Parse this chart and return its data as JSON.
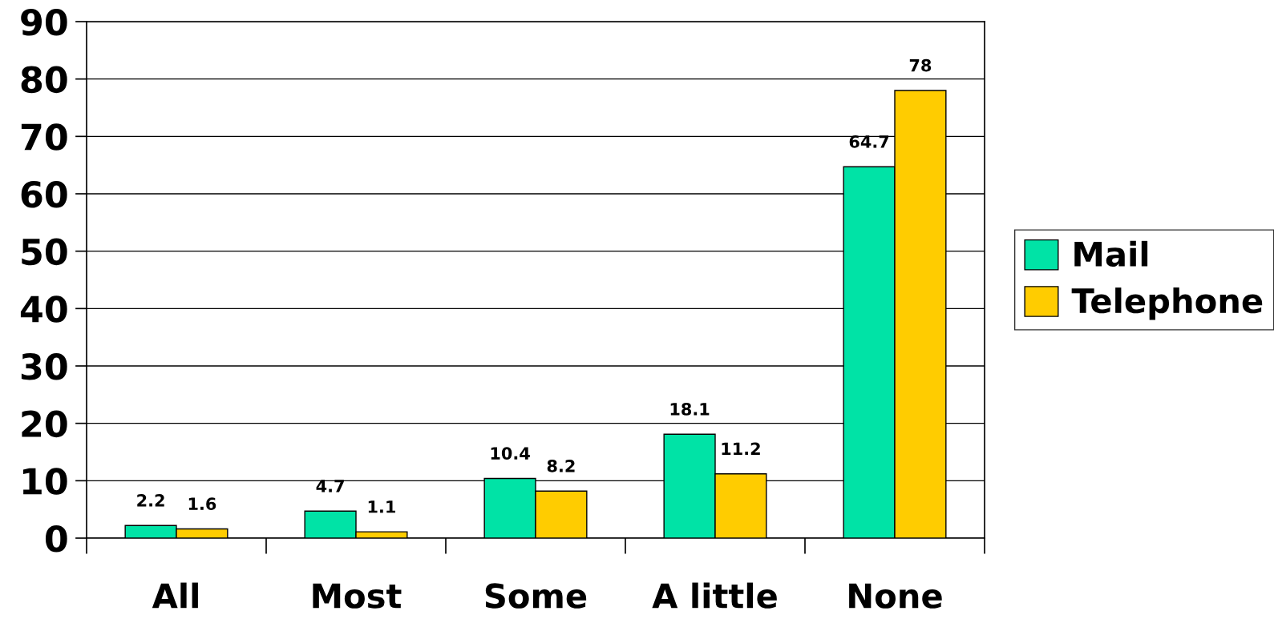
{
  "chart_data": {
    "type": "bar",
    "categories": [
      "All",
      "Most",
      "Some",
      "A little",
      "None"
    ],
    "series": [
      {
        "name": "Mail",
        "color": "#00e3a6",
        "values": [
          2.2,
          4.7,
          10.4,
          18.1,
          64.7
        ]
      },
      {
        "name": "Telephone",
        "color": "#ffcc00",
        "values": [
          1.6,
          1.1,
          8.2,
          11.2,
          78
        ]
      }
    ],
    "ylim": [
      0,
      90
    ],
    "yticks": [
      0,
      10,
      20,
      30,
      40,
      50,
      60,
      70,
      80,
      90
    ],
    "grid": "y",
    "legend": "right",
    "data_labels": true
  }
}
